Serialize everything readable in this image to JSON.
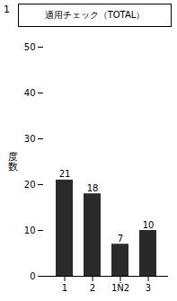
{
  "chart_data": {
    "type": "bar",
    "title": "適用チェック（TOTAL）",
    "annotations": [
      "1"
    ],
    "ylabel": "度数",
    "categories": [
      "1",
      "2",
      "1Ñ2",
      "3"
    ],
    "values": [
      21,
      18,
      7,
      10
    ],
    "color": "#2a2a2a",
    "ylim": [
      0,
      50
    ],
    "yticks": [
      0,
      10,
      20,
      30,
      40,
      50
    ],
    "data_labels": true
  }
}
